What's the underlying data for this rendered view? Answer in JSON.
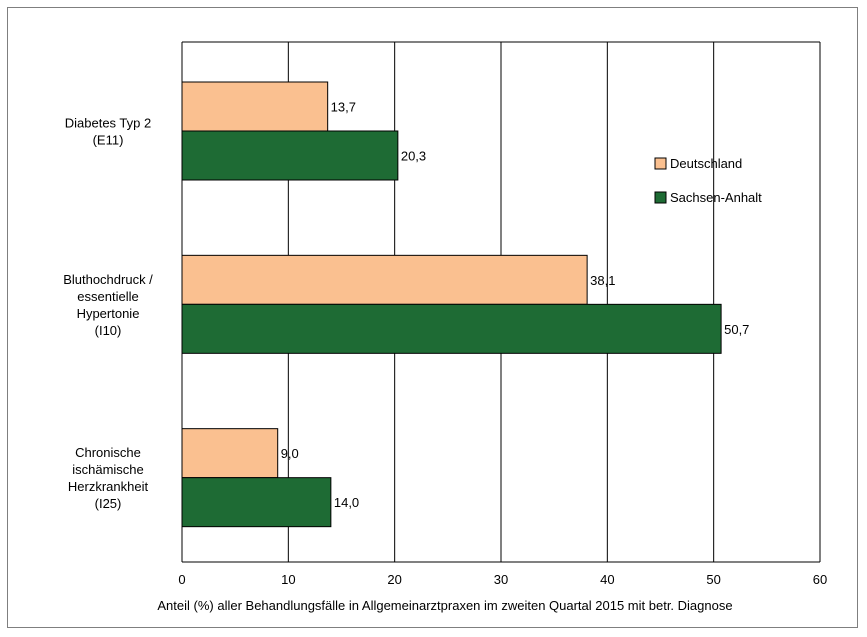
{
  "chart_data": {
    "type": "bar",
    "orientation": "horizontal",
    "categories": [
      [
        "Diabetes Typ 2",
        "(E11)"
      ],
      [
        "Bluthochdruck /",
        "essentielle",
        "Hypertonie",
        "(I10)"
      ],
      [
        "Chronische",
        "ischämische",
        "Herzkrankheit",
        "(I25)"
      ]
    ],
    "series": [
      {
        "name": "Deutschland",
        "values": [
          13.7,
          38.1,
          9.0
        ],
        "labels": [
          "13,7",
          "38,1",
          "9,0"
        ],
        "color": "#fac090"
      },
      {
        "name": "Sachsen-Anhalt",
        "values": [
          20.3,
          50.7,
          14.0
        ],
        "labels": [
          "20,3",
          "50,7",
          "14,0"
        ],
        "color": "#1e6b34"
      }
    ],
    "xlim": [
      0,
      60
    ],
    "xticks": [
      0,
      10,
      20,
      30,
      40,
      50,
      60
    ],
    "xlabel": "Anteil (%) aller Behandlungsfälle in Allgemeinarztpraxen im zweiten Quartal 2015 mit betr.  Diagnose",
    "title": "",
    "grid": "vertical",
    "legend_position": "right"
  }
}
